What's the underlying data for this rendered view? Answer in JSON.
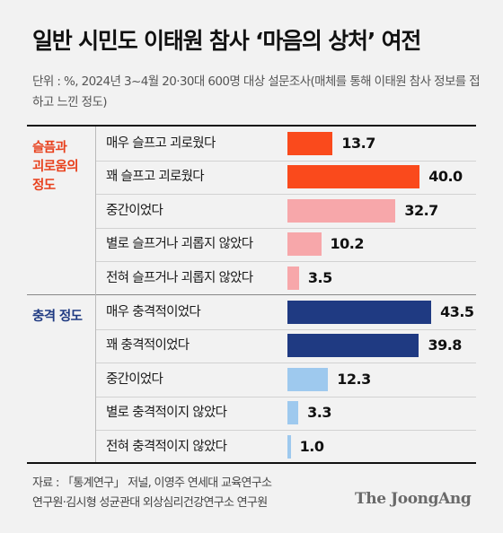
{
  "title": "일반 시민도 이태원 참사 ‘마음의 상처’ 여전",
  "subtitle": "단위 : %, 2024년 3~4월 20·30대 600명 대상 설문조사(매체를 통해 이태원 참사 정보를 접하고 느낀 정도)",
  "source_line1": "자료 : 「통계연구」 저널, 이영주 연세대 교육연구소",
  "source_line2": "연구원·김시형 성균관대 외상심리건강연구소 연구원",
  "logo": "The JoongAng",
  "chart_data": {
    "type": "bar",
    "orientation": "horizontal",
    "xlim": [
      0,
      50
    ],
    "groups": [
      {
        "name_lines": [
          "슬픔과",
          "괴로움의",
          "정도"
        ],
        "color": "#e8401c",
        "items": [
          {
            "label": "매우 슬프고 괴로웠다",
            "value": 13.7,
            "value_text": "13.7",
            "color": "#fa4a1c"
          },
          {
            "label": "꽤 슬프고 괴로웠다",
            "value": 40.0,
            "value_text": "40.0",
            "color": "#fa4a1c"
          },
          {
            "label": "중간이었다",
            "value": 32.7,
            "value_text": "32.7",
            "color": "#f7a7aa"
          },
          {
            "label": "별로 슬프거나 괴롭지 않았다",
            "value": 10.2,
            "value_text": "10.2",
            "color": "#f7a7aa"
          },
          {
            "label": "전혀 슬프거나 괴롭지 않았다",
            "value": 3.5,
            "value_text": "3.5",
            "color": "#f7a7aa"
          }
        ]
      },
      {
        "name_lines": [
          "충격 정도"
        ],
        "color": "#1f3a82",
        "items": [
          {
            "label": "매우 충격적이었다",
            "value": 43.5,
            "value_text": "43.5",
            "color": "#1f3a82"
          },
          {
            "label": "꽤 충격적이었다",
            "value": 39.8,
            "value_text": "39.8",
            "color": "#1f3a82"
          },
          {
            "label": "중간이었다",
            "value": 12.3,
            "value_text": "12.3",
            "color": "#9ec9ee"
          },
          {
            "label": "별로 충격적이지 않았다",
            "value": 3.3,
            "value_text": "3.3",
            "color": "#9ec9ee"
          },
          {
            "label": "전혀 충격적이지 않았다",
            "value": 1.0,
            "value_text": "1.0",
            "color": "#9ec9ee"
          }
        ]
      }
    ]
  }
}
